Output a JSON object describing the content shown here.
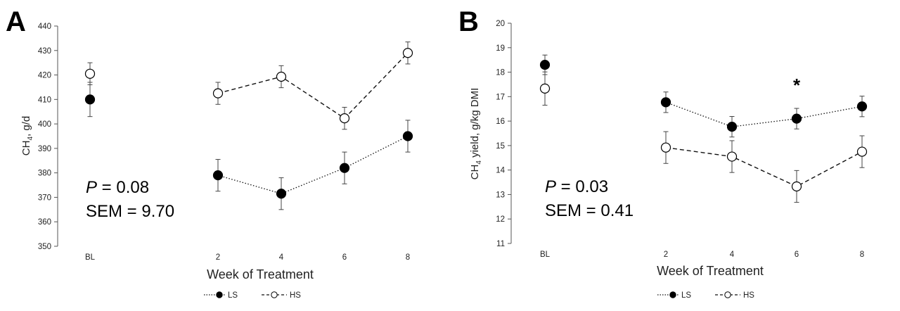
{
  "legend": {
    "ls_label": "LS",
    "hs_label": "HS"
  },
  "chart_data": [
    {
      "panel_letter": "A",
      "type": "line",
      "xlabel": "Week of Treatment",
      "ylabel_main": "CH",
      "ylabel_sub": "4",
      "ylabel_rest": ", g/d",
      "ylim": [
        350,
        440
      ],
      "yticks": [
        350,
        360,
        370,
        380,
        390,
        400,
        410,
        420,
        430,
        440
      ],
      "baseline_label": "BL",
      "x_ticks": [
        "2",
        "4",
        "6",
        "8"
      ],
      "stats": {
        "p_symbol": "P",
        "p_text": " = 0.08",
        "sem_text": "SEM = 9.70"
      },
      "significance": [],
      "series": [
        {
          "name": "LS",
          "marker": "filled",
          "line": "dotted",
          "baseline": {
            "value": 410,
            "err": 7
          },
          "values": [
            379,
            371.5,
            382,
            395
          ],
          "errors": [
            6.5,
            6.5,
            6.5,
            6.5
          ]
        },
        {
          "name": "HS",
          "marker": "open",
          "line": "dashed",
          "baseline": {
            "value": 420.5,
            "err": 4.5
          },
          "values": [
            412.5,
            419.3,
            402.3,
            429
          ],
          "errors": [
            4.5,
            4.5,
            4.5,
            4.5
          ]
        }
      ]
    },
    {
      "panel_letter": "B",
      "type": "line",
      "xlabel": "Week of Treatment",
      "ylabel_main": "CH",
      "ylabel_sub": "4",
      "ylabel_rest": " yield, g/kg DMI",
      "ylim": [
        11,
        20
      ],
      "yticks": [
        11,
        12,
        13,
        14,
        15,
        16,
        17,
        18,
        19,
        20
      ],
      "baseline_label": "BL",
      "x_ticks": [
        "2",
        "4",
        "6",
        "8"
      ],
      "stats": {
        "p_symbol": "P",
        "p_text": " = 0.03",
        "sem_text": "SEM = 0.41"
      },
      "significance": [
        {
          "week": "6",
          "label": "*"
        }
      ],
      "series": [
        {
          "name": "LS",
          "marker": "filled",
          "line": "dotted",
          "baseline": {
            "value": 18.3,
            "err": 0.4
          },
          "values": [
            16.77,
            15.77,
            16.1,
            16.6
          ],
          "errors": [
            0.42,
            0.42,
            0.42,
            0.42
          ]
        },
        {
          "name": "HS",
          "marker": "open",
          "line": "dashed",
          "baseline": {
            "value": 17.33,
            "err": 0.68
          },
          "values": [
            14.92,
            14.55,
            13.33,
            14.75
          ],
          "errors": [
            0.65,
            0.65,
            0.65,
            0.65
          ]
        }
      ]
    }
  ]
}
